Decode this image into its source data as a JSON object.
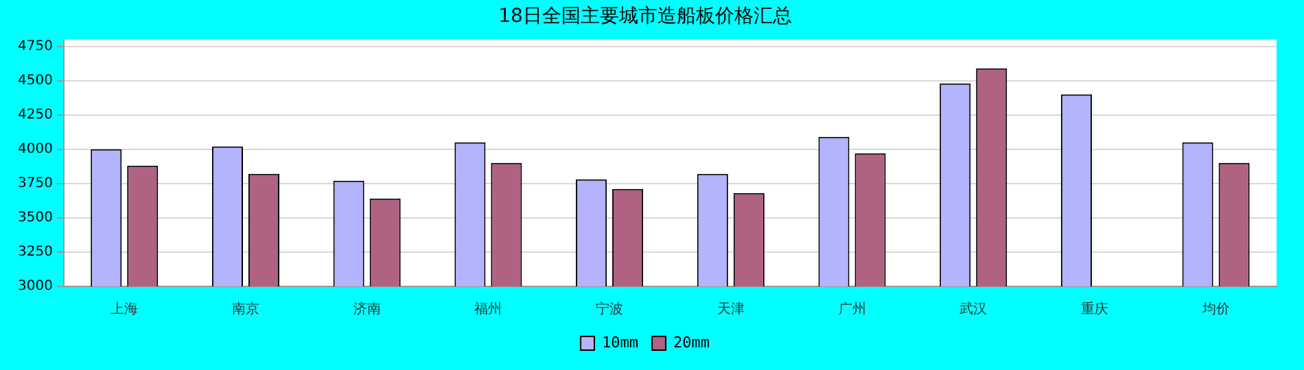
{
  "chart_data": {
    "type": "bar",
    "title": "18日全国主要城市造船板价格汇总",
    "categories": [
      "上海",
      "南京",
      "济南",
      "福州",
      "宁波",
      "天津",
      "广州",
      "武汉",
      "重庆",
      "均价"
    ],
    "series": [
      {
        "name": "10mm",
        "color": "#b3b3fe",
        "values": [
          4000,
          4020,
          3770,
          4050,
          3780,
          3820,
          4090,
          4480,
          4400,
          4050
        ]
      },
      {
        "name": "20mm",
        "color": "#b06283",
        "values": [
          3880,
          3820,
          3640,
          3900,
          3710,
          3680,
          3970,
          4590,
          null,
          3900
        ]
      }
    ],
    "ylim": [
      3000,
      4800
    ],
    "yticks": [
      3000,
      3250,
      3500,
      3750,
      4000,
      4250,
      4500,
      4750
    ],
    "grid": "y",
    "legend": "bottom"
  }
}
